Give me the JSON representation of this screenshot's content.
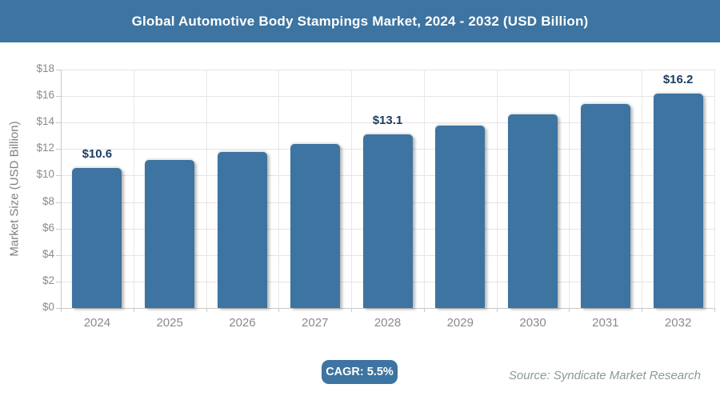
{
  "theme": {
    "accent": "#3d74a1",
    "grid_color": "#e4e4e4",
    "axis_color": "#c9c9c9",
    "tick_text_color": "#8a8a8a",
    "data_label_color": "#1e3c5f"
  },
  "header": {
    "title": "Global Automotive Body Stampings Market, 2024 - 2032 (USD Billion)"
  },
  "chart_data": {
    "type": "bar",
    "categories": [
      "2024",
      "2025",
      "2026",
      "2027",
      "2028",
      "2029",
      "2030",
      "2031",
      "2032"
    ],
    "values": [
      10.6,
      11.2,
      11.8,
      12.4,
      13.1,
      13.8,
      14.6,
      15.4,
      16.2
    ],
    "data_labels": [
      {
        "index": 0,
        "text": "$10.6"
      },
      {
        "index": 4,
        "text": "$13.1"
      },
      {
        "index": 8,
        "text": "$16.2"
      }
    ],
    "title": "Global Automotive Body Stampings Market, 2024 - 2032 (USD Billion)",
    "xlabel": "",
    "ylabel": "Market Size (USD Billion)",
    "ylim": [
      0,
      18
    ],
    "ytick_step": 2,
    "ytick_prefix": "$",
    "bar_color": "#3d74a1",
    "grid": true,
    "legend": "none"
  },
  "footer": {
    "cagr_label": "CAGR: 5.5%",
    "source": "Source: Syndicate Market Research"
  }
}
